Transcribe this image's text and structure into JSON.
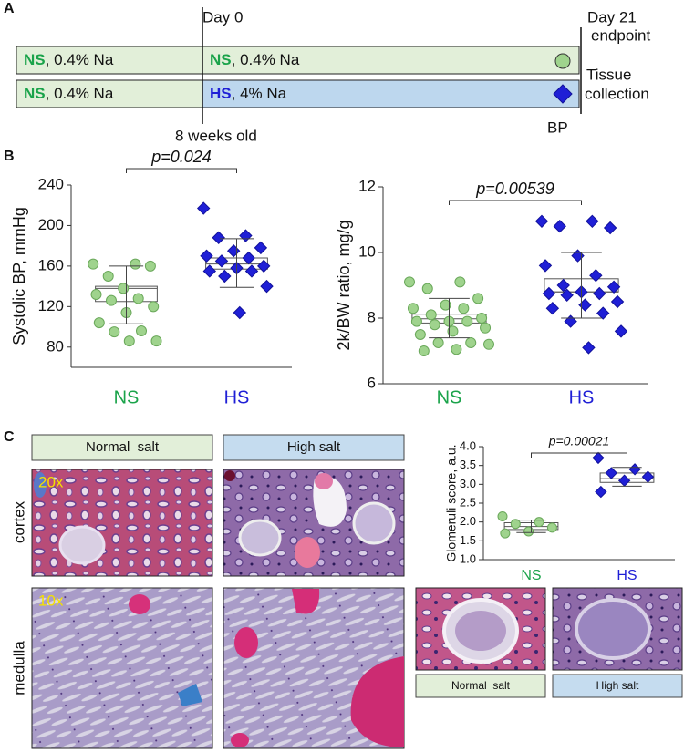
{
  "panel_labels": {
    "a": "A",
    "b": "B",
    "c": "C"
  },
  "timeline": {
    "day0": "Day 0",
    "day21": "Day 21",
    "endpoint": "endpoint",
    "age": "8 weeks old",
    "tissue": "Tissue",
    "collection": "collection",
    "bp": "BP",
    "rows": [
      {
        "before_group": "NS",
        "before_diet": ", 0.4% Na",
        "after_group": "NS",
        "after_diet": ", 0.4% Na"
      },
      {
        "before_group": "NS",
        "before_diet": ", 0.4% Na",
        "after_group": "HS",
        "after_diet": ", 4% Na"
      }
    ]
  },
  "chart_data": [
    {
      "type": "dotplot",
      "ylabel": "Systolic BP, mmHg",
      "categories": [
        "NS",
        "HS"
      ],
      "groups": [
        {
          "color": "#9fd38d",
          "edge": "#6aa85a",
          "marker": "circle",
          "values": [
            162,
            162,
            150,
            160,
            138,
            132,
            128,
            126,
            120,
            114,
            104,
            96,
            95,
            86,
            86
          ]
        },
        {
          "color": "#1f1fd6",
          "edge": "#12129a",
          "marker": "diamond",
          "values": [
            217,
            190,
            188,
            178,
            175,
            170,
            168,
            165,
            160,
            158,
            155,
            155,
            150,
            140,
            114
          ]
        }
      ],
      "box": [
        {
          "q1": 125,
          "median": 138,
          "q3": 140,
          "whisker_low": 103,
          "whisker_high": 160
        },
        {
          "q1": 157,
          "median": 162,
          "q3": 168,
          "whisker_low": 139,
          "whisker_high": 187
        }
      ],
      "annotation": "p=0.024",
      "ylim": [
        60,
        240
      ],
      "yticks": [
        80,
        120,
        160,
        200,
        240
      ]
    },
    {
      "type": "dotplot",
      "ylabel": "2k/BW ratio, mg/g",
      "categories": [
        "NS",
        "HS"
      ],
      "groups": [
        {
          "color": "#9fd38d",
          "edge": "#6aa85a",
          "marker": "circle",
          "values": [
            9.1,
            9.1,
            8.9,
            8.6,
            8.4,
            8.3,
            8.3,
            8.1,
            8.0,
            7.9,
            7.9,
            7.9,
            7.8,
            7.7,
            7.6,
            7.5,
            7.25,
            7.25,
            7.2,
            7.05,
            7.0
          ]
        },
        {
          "color": "#1f1fd6",
          "edge": "#12129a",
          "marker": "diamond",
          "values": [
            10.95,
            10.95,
            10.8,
            10.75,
            9.9,
            9.6,
            9.3,
            9.0,
            8.95,
            8.8,
            8.75,
            8.75,
            8.7,
            8.5,
            8.4,
            8.3,
            8.15,
            7.9,
            7.6,
            7.1
          ]
        }
      ],
      "box": [
        {
          "q1": 7.85,
          "median": 7.98,
          "q3": 8.12,
          "whisker_low": 7.4,
          "whisker_high": 8.6
        },
        {
          "q1": 8.8,
          "median": 8.8,
          "q3": 9.2,
          "whisker_low": 8.0,
          "whisker_high": 10.0
        }
      ],
      "annotation": "p=0.00539",
      "ylim": [
        6,
        12
      ],
      "yticks": [
        6,
        8,
        10,
        12
      ]
    },
    {
      "type": "dotplot",
      "ylabel": "Glomeruli score, a.u.",
      "categories": [
        "NS",
        "HS"
      ],
      "groups": [
        {
          "color": "#9fd38d",
          "edge": "#6aa85a",
          "marker": "circle",
          "values": [
            2.15,
            2.0,
            1.95,
            1.85,
            1.75,
            1.7
          ]
        },
        {
          "color": "#1f1fd6",
          "edge": "#12129a",
          "marker": "diamond",
          "values": [
            3.7,
            3.4,
            3.3,
            3.2,
            3.1,
            2.8
          ]
        }
      ],
      "box": [
        {
          "q1": 1.8,
          "median": 1.88,
          "q3": 1.98,
          "whisker_low": 1.72,
          "whisker_high": 2.05
        },
        {
          "q1": 3.05,
          "median": 3.15,
          "q3": 3.3,
          "whisker_low": 2.95,
          "whisker_high": 3.45
        }
      ],
      "annotation": "p=0.00021",
      "ylim": [
        1,
        4
      ],
      "yticks": [
        {
          "value": 1,
          "label": "1.0"
        },
        {
          "value": 1.5,
          "label": "1.5"
        },
        {
          "value": 2,
          "label": "2.0"
        },
        {
          "value": 2.5,
          "label": "2.5"
        },
        {
          "value": 3,
          "label": "3.0"
        },
        {
          "value": 3.5,
          "label": "3.5"
        },
        {
          "value": 4,
          "label": "4.0"
        }
      ]
    }
  ],
  "histology": {
    "header_normal": "Normal  salt",
    "header_high": "High salt",
    "row_cortex": "cortex",
    "row_medulla": "medulla",
    "mag_cortex": "20x",
    "mag_medulla": "10x",
    "footer_normal": "Normal  salt",
    "footer_high": "High salt"
  }
}
